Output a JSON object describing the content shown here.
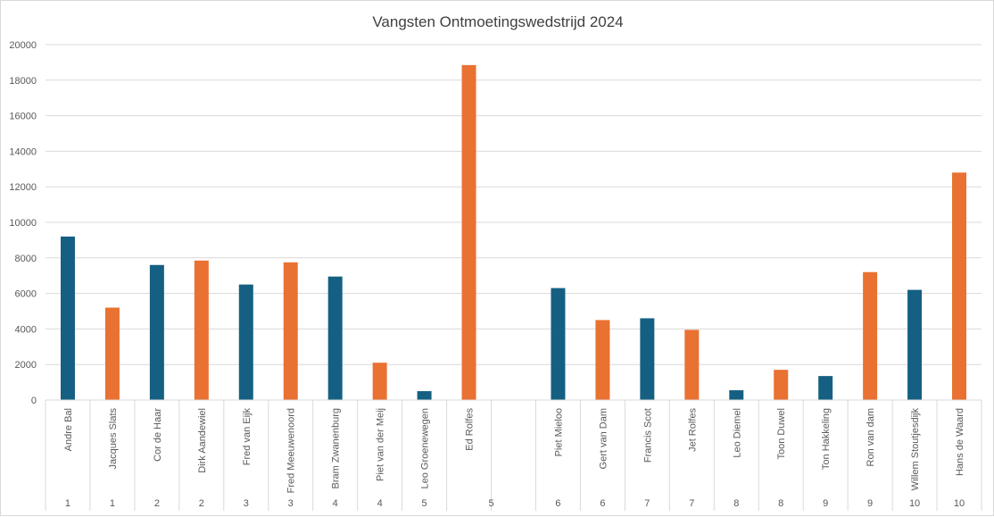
{
  "chart_data": {
    "type": "bar",
    "title": "Vangsten Ontmoetingswedstrijd 2024",
    "xlabel": "",
    "ylabel": "",
    "ylim": [
      0,
      20000
    ],
    "yticks": [
      0,
      2000,
      4000,
      6000,
      8000,
      10000,
      12000,
      14000,
      16000,
      18000,
      20000
    ],
    "grid": true,
    "legend": "none",
    "colors": {
      "blue": "#156082",
      "orange": "#e97132"
    },
    "groups": [
      {
        "label": "1",
        "categories": [
          {
            "name": "Andre Bal",
            "value": 9200,
            "color": "blue"
          },
          {
            "name": "Jacques Slats",
            "value": 5200,
            "color": "orange"
          }
        ]
      },
      {
        "label": "2",
        "categories": [
          {
            "name": "Cor de Haar",
            "value": 7600,
            "color": "blue"
          },
          {
            "name": "Dirk Aandewiel",
            "value": 7850,
            "color": "orange"
          }
        ]
      },
      {
        "label": "3",
        "categories": [
          {
            "name": "Fred van Eijk",
            "value": 6500,
            "color": "blue"
          },
          {
            "name": "Fred Meeuwenoord",
            "value": 7750,
            "color": "orange"
          }
        ]
      },
      {
        "label": "4",
        "categories": [
          {
            "name": "Bram Zwanenburg",
            "value": 6950,
            "color": "blue"
          },
          {
            "name": "Piet van der Meij",
            "value": 2100,
            "color": "orange"
          }
        ]
      },
      {
        "label": "5",
        "categories": [
          {
            "name": "Leo Groenewegen",
            "value": 500,
            "color": "blue"
          },
          {
            "name": "Ed Rolfes",
            "value": 18850,
            "color": "orange"
          },
          {
            "name": "",
            "value": null,
            "color": "blue"
          }
        ]
      },
      {
        "label": "6",
        "categories": [
          {
            "name": "Piet Mieloo",
            "value": 6300,
            "color": "blue"
          },
          {
            "name": "Gert van Dam",
            "value": 4500,
            "color": "orange"
          }
        ]
      },
      {
        "label": "7",
        "categories": [
          {
            "name": "Francis Scot",
            "value": 4600,
            "color": "blue"
          },
          {
            "name": "Jet Rolfes",
            "value": 3950,
            "color": "orange"
          }
        ]
      },
      {
        "label": "8",
        "categories": [
          {
            "name": "Leo Diemel",
            "value": 550,
            "color": "blue"
          },
          {
            "name": "Toon Duwel",
            "value": 1700,
            "color": "orange"
          }
        ]
      },
      {
        "label": "9",
        "categories": [
          {
            "name": "Ton Hakkeling",
            "value": 1350,
            "color": "blue"
          },
          {
            "name": "Ron van dam",
            "value": 7200,
            "color": "orange"
          }
        ]
      },
      {
        "label": "10",
        "categories": [
          {
            "name": "Willem Stoutjesdijk",
            "value": 6200,
            "color": "blue"
          },
          {
            "name": "Hans de Waard",
            "value": 12800,
            "color": "orange"
          }
        ]
      }
    ]
  }
}
